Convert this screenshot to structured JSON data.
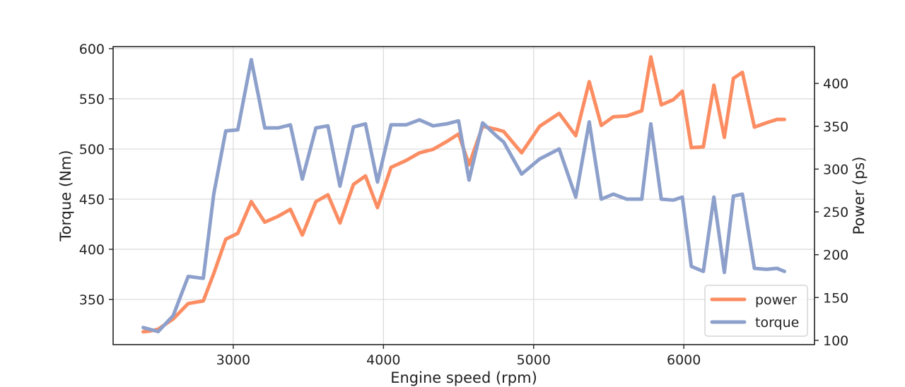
{
  "chart_data": {
    "type": "line",
    "title": "",
    "xlabel": "Engine speed (rpm)",
    "ylabel_left": "Torque (Nm)",
    "ylabel_right": "Power (ps)",
    "xlim": [
      2200,
      6870
    ],
    "ylim_left": [
      305,
      602
    ],
    "ylim_right": [
      95,
      443
    ],
    "x_ticks": [
      "3000",
      "4000",
      "5000",
      "6000"
    ],
    "y_left_ticks": [
      "350",
      "400",
      "450",
      "500",
      "550",
      "600"
    ],
    "y_right_ticks": [
      "100",
      "150",
      "200",
      "250",
      "300",
      "350",
      "400"
    ],
    "grid": true,
    "legend_position": "lower-right",
    "series": [
      {
        "name": "power",
        "axis": "right",
        "color": "#fc8d62",
        "x": [
          2400,
          2450,
          2500,
          2600,
          2700,
          2800,
          2870,
          2950,
          3030,
          3120,
          3210,
          3300,
          3380,
          3460,
          3550,
          3630,
          3710,
          3800,
          3880,
          3960,
          4050,
          4150,
          4240,
          4330,
          4420,
          4500,
          4570,
          4660,
          4760,
          4800,
          4920,
          5040,
          5170,
          5280,
          5370,
          5450,
          5530,
          5620,
          5720,
          5780,
          5850,
          5930,
          5990,
          6050,
          6130,
          6200,
          6270,
          6330,
          6390,
          6470,
          6550,
          6620,
          6670
        ],
        "values": [
          110,
          111,
          113,
          125,
          143,
          146,
          178,
          218,
          225,
          262,
          238,
          245,
          253,
          223,
          262,
          270,
          237,
          282,
          292,
          255,
          302,
          310,
          319,
          323,
          332,
          341,
          305,
          350,
          346,
          344,
          319,
          350,
          365,
          339,
          402,
          351,
          361,
          362,
          368,
          431,
          375,
          381,
          391,
          325,
          326,
          398,
          337,
          406,
          413,
          349,
          354,
          358,
          358
        ]
      },
      {
        "name": "torque",
        "axis": "left",
        "color": "#8da0cb",
        "x": [
          2400,
          2450,
          2500,
          2600,
          2700,
          2800,
          2870,
          2950,
          3030,
          3120,
          3210,
          3300,
          3380,
          3460,
          3550,
          3630,
          3710,
          3800,
          3880,
          3960,
          4050,
          4150,
          4240,
          4330,
          4420,
          4500,
          4570,
          4660,
          4760,
          4800,
          4920,
          5040,
          5170,
          5280,
          5370,
          5450,
          5530,
          5620,
          5720,
          5780,
          5850,
          5930,
          5990,
          6050,
          6130,
          6200,
          6270,
          6330,
          6390,
          6470,
          6550,
          6620,
          6670
        ],
        "values": [
          322,
          320,
          318,
          334,
          373,
          371,
          455,
          518,
          519,
          589,
          521,
          521,
          524,
          470,
          521,
          523,
          463,
          522,
          525,
          467,
          524,
          524,
          529,
          523,
          525,
          528,
          469,
          526,
          512,
          507,
          475,
          490,
          500,
          452,
          527,
          450,
          455,
          450,
          450,
          525,
          450,
          449,
          452,
          383,
          378,
          452,
          377,
          453,
          455,
          381,
          380,
          381,
          378
        ]
      }
    ]
  }
}
